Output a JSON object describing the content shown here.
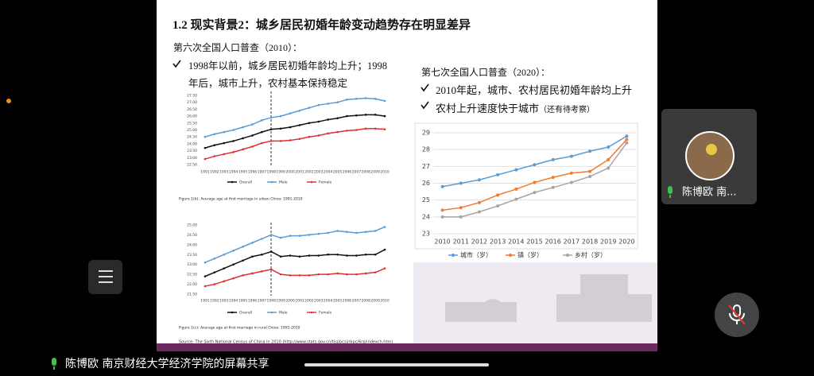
{
  "slide": {
    "title": "1.2 现实背景2：城乡居民初婚年龄变动趋势存在明显差异",
    "census6_heading": "第六次全国人口普查（2010）：",
    "census6_bullet": "1998年以前，城乡居民初婚年龄均上升；1998年后，城市上升，农村基本保持稳定",
    "census7_heading": "第七次全国人口普查（2020）：",
    "census7_bullets": [
      "2010年起，城市、农村居民初婚年龄均上升",
      "农村上升速度快于城市"
    ],
    "census7_note": "（还有待考察）",
    "source": "Source: The Sixth National Census of China in 2010 (http://www.stats.gov.cn/tjsj/pcsj/rkpc/6rp/indexch.htm)"
  },
  "chart_data": [
    {
      "type": "line",
      "title": "Figure 1(b): Average age at first marriage in urban China: 1991-2010",
      "categories": [
        "1991",
        "1992",
        "1993",
        "1994",
        "1995",
        "1996",
        "1997",
        "1998",
        "1999",
        "2000",
        "2001",
        "2002",
        "2003",
        "2004",
        "2005",
        "2006",
        "2007",
        "2008",
        "2009",
        "2010"
      ],
      "series": [
        {
          "name": "Overall",
          "color": "#111111",
          "values": [
            23.7,
            23.9,
            24.05,
            24.2,
            24.4,
            24.6,
            24.85,
            25.05,
            25.1,
            25.2,
            25.35,
            25.5,
            25.6,
            25.75,
            25.85,
            26.0,
            26.05,
            26.1,
            26.1,
            26.0
          ]
        },
        {
          "name": "Male",
          "color": "#5b9bd5",
          "values": [
            24.5,
            24.7,
            24.85,
            25.0,
            25.2,
            25.4,
            25.7,
            25.9,
            26.0,
            26.2,
            26.4,
            26.6,
            26.8,
            26.9,
            27.0,
            27.2,
            27.25,
            27.3,
            27.25,
            27.1
          ]
        },
        {
          "name": "Female",
          "color": "#e03030",
          "values": [
            22.9,
            23.1,
            23.25,
            23.4,
            23.6,
            23.8,
            24.05,
            24.2,
            24.2,
            24.25,
            24.35,
            24.5,
            24.6,
            24.75,
            24.85,
            24.95,
            25.0,
            25.1,
            25.1,
            25.05
          ]
        }
      ],
      "ylim": [
        22.5,
        27.5
      ],
      "yticks": [
        {
          "value": 22.5,
          "label": "22.50"
        },
        {
          "value": 23,
          "label": "23.00"
        },
        {
          "value": 23.5,
          "label": "23.50"
        },
        {
          "value": 24,
          "label": "24.00"
        },
        {
          "value": 24.5,
          "label": "24.50"
        },
        {
          "value": 25,
          "label": "25.00"
        },
        {
          "value": 25.5,
          "label": "25.50"
        },
        {
          "value": 26,
          "label": "26.00"
        },
        {
          "value": 26.5,
          "label": "26.50"
        },
        {
          "value": 27,
          "label": "27.00"
        },
        {
          "value": 27.5,
          "label": "27.50"
        }
      ],
      "grid": false
    },
    {
      "type": "line",
      "title": "Figure 1(c): Average age at first marriage in rural China: 1991-2010",
      "categories": [
        "1991",
        "1992",
        "1993",
        "1994",
        "1995",
        "1996",
        "1997",
        "1998",
        "1999",
        "2000",
        "2001",
        "2002",
        "2003",
        "2004",
        "2005",
        "2006",
        "2007",
        "2008",
        "2009",
        "2010"
      ],
      "series": [
        {
          "name": "Overall",
          "color": "#111111",
          "values": [
            22.4,
            22.6,
            22.8,
            23.0,
            23.2,
            23.4,
            23.5,
            23.65,
            23.4,
            23.45,
            23.4,
            23.45,
            23.45,
            23.5,
            23.5,
            23.45,
            23.45,
            23.5,
            23.5,
            23.75
          ]
        },
        {
          "name": "Male",
          "color": "#5b9bd5",
          "values": [
            23.1,
            23.3,
            23.5,
            23.7,
            23.9,
            24.1,
            24.3,
            24.5,
            24.35,
            24.45,
            24.45,
            24.5,
            24.55,
            24.6,
            24.7,
            24.65,
            24.6,
            24.65,
            24.7,
            24.9
          ]
        },
        {
          "name": "Female",
          "color": "#e03030",
          "values": [
            21.9,
            22.0,
            22.15,
            22.3,
            22.45,
            22.55,
            22.65,
            22.75,
            22.5,
            22.45,
            22.45,
            22.45,
            22.5,
            22.5,
            22.55,
            22.5,
            22.5,
            22.55,
            22.6,
            22.8
          ]
        }
      ],
      "ylim": [
        21.5,
        25
      ],
      "yticks": [
        {
          "value": 21.5,
          "label": "21.50"
        },
        {
          "value": 22,
          "label": "22.00"
        },
        {
          "value": 22.5,
          "label": "22.50"
        },
        {
          "value": 23,
          "label": "23.00"
        },
        {
          "value": 23.5,
          "label": "23.50"
        },
        {
          "value": 24,
          "label": "24.00"
        },
        {
          "value": 24.5,
          "label": "24.50"
        },
        {
          "value": 25,
          "label": "25.00"
        }
      ],
      "grid": false
    },
    {
      "type": "line",
      "categories": [
        "2010",
        "2011",
        "2012",
        "2013",
        "2014",
        "2015",
        "2016",
        "2017",
        "2018",
        "2019",
        "2020"
      ],
      "series": [
        {
          "name": "城市（岁）",
          "color": "#5b9bd5",
          "values": [
            25.8,
            26.0,
            26.2,
            26.5,
            26.8,
            27.1,
            27.4,
            27.6,
            27.9,
            28.15,
            28.8
          ]
        },
        {
          "name": "镇（岁）",
          "color": "#ed7d31",
          "values": [
            24.4,
            24.55,
            24.85,
            25.3,
            25.65,
            26.05,
            26.35,
            26.6,
            26.7,
            27.4,
            28.6
          ]
        },
        {
          "name": "乡村（岁）",
          "color": "#a5a5a5",
          "values": [
            24.0,
            24.0,
            24.3,
            24.65,
            25.05,
            25.45,
            25.75,
            26.05,
            26.4,
            26.9,
            28.4
          ]
        }
      ],
      "ylim": [
        23,
        29
      ],
      "yticks": [
        23,
        24,
        25,
        26,
        27,
        28,
        29
      ],
      "grid": true
    }
  ],
  "ui": {
    "share_label": "陈博欧 南京财经大学经济学院的屏幕共享",
    "participant_name": "陈博欧 南..."
  }
}
